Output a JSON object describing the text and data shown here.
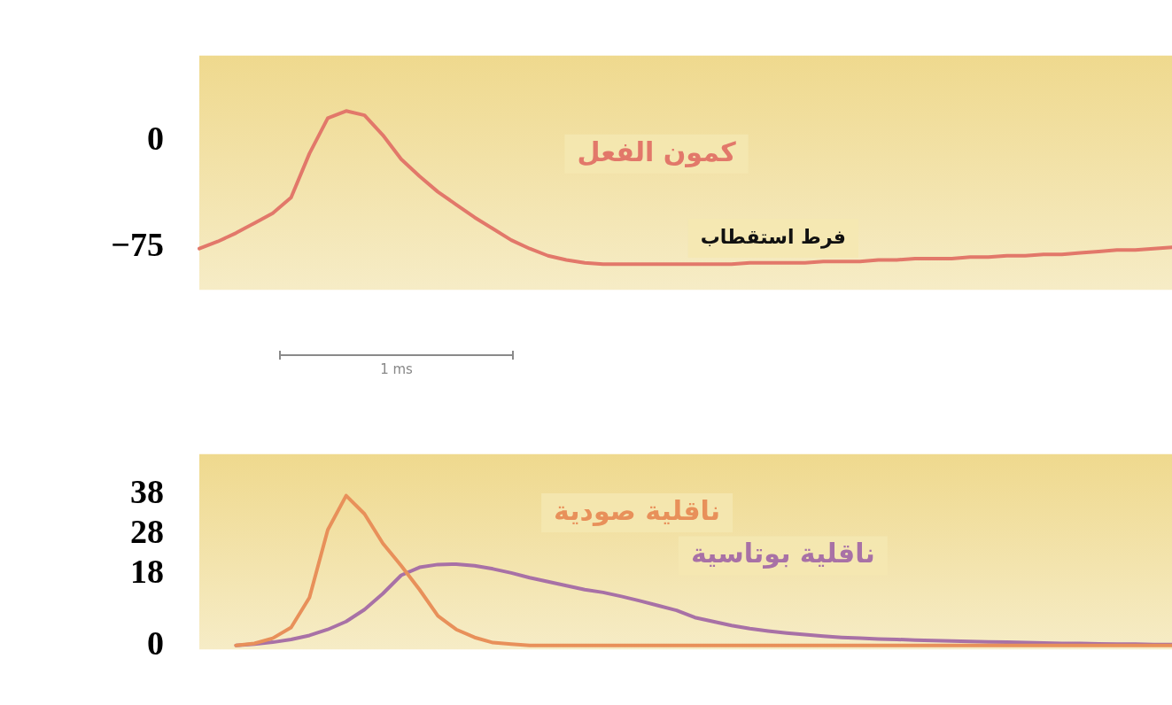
{
  "chart_data": [
    {
      "type": "line",
      "categories": [
        null,
        null,
        null,
        null,
        null,
        null,
        null,
        null,
        null,
        null,
        null,
        null,
        null,
        null,
        null,
        null,
        null,
        null,
        null,
        null,
        null,
        null,
        null,
        null,
        null,
        null,
        null,
        null,
        null,
        null,
        null,
        null,
        null,
        null,
        null,
        null,
        null,
        null,
        null,
        null,
        null,
        null,
        null,
        null,
        null,
        null,
        null,
        null,
        null,
        null,
        null,
        null,
        null,
        null
      ],
      "series": [
        {
          "name": "كمون الفعل",
          "color": "#e2786a",
          "values": [
            -76,
            -71,
            -65,
            -58,
            -51,
            -40,
            -9,
            16,
            21,
            18,
            4,
            -13,
            -25,
            -36,
            -45,
            -54,
            -62,
            -70,
            -76,
            -81,
            -84,
            -86,
            -87,
            -87,
            -87,
            -87,
            -87,
            -87,
            -87,
            -87,
            -86,
            -86,
            -86,
            -86,
            -85,
            -85,
            -85,
            -84,
            -84,
            -83,
            -83,
            -83,
            -82,
            -82,
            -81,
            -81,
            -80,
            -80,
            -79,
            -78,
            -77,
            -77,
            -76,
            -75
          ]
        }
      ],
      "ylim": [
        -105,
        60
      ],
      "yticks": [
        0,
        -75
      ],
      "tick_labels": "y",
      "grid": false,
      "legend": false,
      "annotations": [
        "فرط استقطاب",
        "1 ms"
      ]
    },
    {
      "type": "line",
      "categories": [
        null,
        null,
        null,
        null,
        null,
        null,
        null,
        null,
        null,
        null,
        null,
        null,
        null,
        null,
        null,
        null,
        null,
        null,
        null,
        null,
        null,
        null,
        null,
        null,
        null,
        null,
        null,
        null,
        null,
        null,
        null,
        null,
        null,
        null,
        null,
        null,
        null,
        null,
        null,
        null,
        null,
        null,
        null,
        null,
        null,
        null,
        null,
        null,
        null,
        null,
        null,
        null,
        null,
        null
      ],
      "series": [
        {
          "name": "ناقلية صودية",
          "color": "#e8905a",
          "values": [
            null,
            null,
            0,
            0.5,
            1.8,
            4.5,
            12,
            29,
            37.6,
            33,
            25.6,
            20,
            14,
            7.4,
            4,
            2,
            0.7,
            0.3,
            0,
            0,
            0,
            0,
            0,
            0,
            0,
            0,
            0,
            0,
            0,
            0,
            0,
            0,
            0,
            0,
            0,
            0,
            0,
            0,
            0,
            0,
            0,
            0,
            0,
            0,
            0,
            0,
            0,
            0,
            0,
            0,
            0,
            0,
            0,
            0
          ]
        },
        {
          "name": "ناقلية بوتاسية",
          "color": "#a871a6",
          "values": [
            null,
            null,
            0,
            0.3,
            0.8,
            1.5,
            2.5,
            4,
            6,
            9,
            13,
            17.6,
            19.6,
            20.3,
            20.4,
            20,
            19.2,
            18.2,
            17,
            16,
            15,
            14,
            13.3,
            12.3,
            11.2,
            10,
            8.8,
            7,
            6,
            5,
            4.2,
            3.6,
            3.1,
            2.7,
            2.3,
            2,
            1.8,
            1.6,
            1.5,
            1.3,
            1.2,
            1.1,
            1,
            0.9,
            0.8,
            0.7,
            0.6,
            0.5,
            0.5,
            0.4,
            0.3,
            0.3,
            0.2,
            0.2
          ]
        }
      ],
      "ylim": [
        -1,
        48
      ],
      "yticks": [
        0,
        18,
        28,
        38
      ],
      "tick_labels": "y",
      "grid": false,
      "legend": false
    }
  ]
}
